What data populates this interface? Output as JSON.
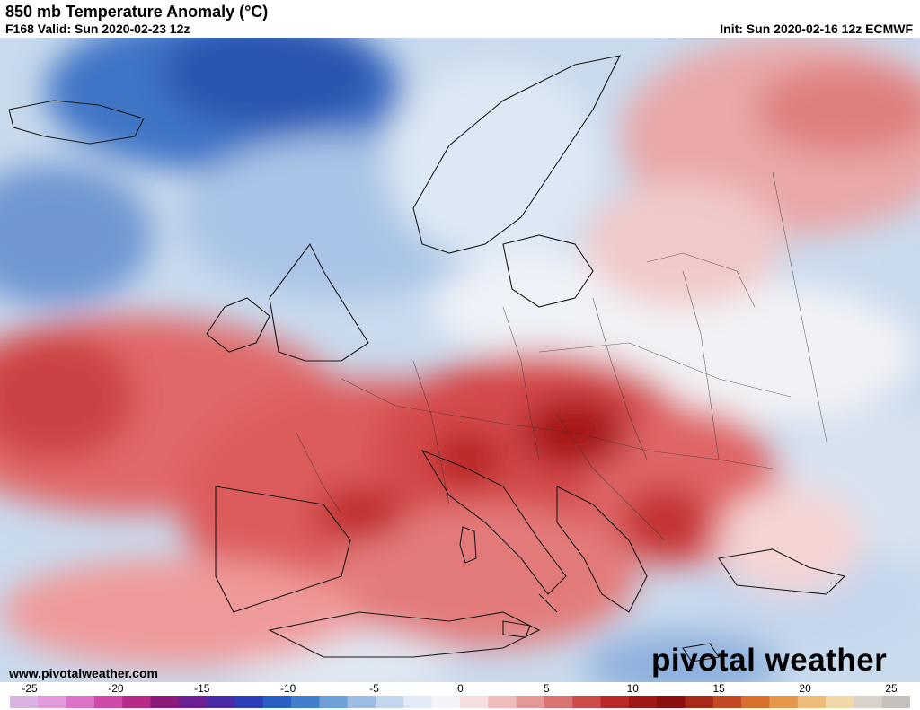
{
  "header": {
    "title": "850 mb Temperature Anomaly (°C)",
    "valid": "F168 Valid: Sun 2020-02-23 12z",
    "init": "Init: Sun 2020-02-16 12z ECMWF"
  },
  "footer": {
    "url": "www.pivotalweather.com",
    "brand": "pivotal weather"
  },
  "colorbar": {
    "ticks": [
      "-25",
      "-20",
      "-15",
      "-10",
      "-5",
      "0",
      "5",
      "10",
      "15",
      "20",
      "25"
    ],
    "colors": [
      "#d8b4e0",
      "#e29ad9",
      "#dc72c8",
      "#cf4aa9",
      "#b52b86",
      "#8c1a7d",
      "#6e1f93",
      "#4a2ca8",
      "#2d3fb8",
      "#2a5fc4",
      "#3f7fcc",
      "#6e9fd6",
      "#9dbde2",
      "#c4d6ec",
      "#e3ecf6",
      "#f4f4f8",
      "#f6dede",
      "#efbcbc",
      "#e59898",
      "#d97272",
      "#cc4c4c",
      "#bb2a2a",
      "#a01818",
      "#8a1010",
      "#a82a1a",
      "#c24a22",
      "#d6702e",
      "#e4974a",
      "#ecbd7a",
      "#f0d9a8",
      "#d9d2c8",
      "#c6c0bc"
    ]
  }
}
